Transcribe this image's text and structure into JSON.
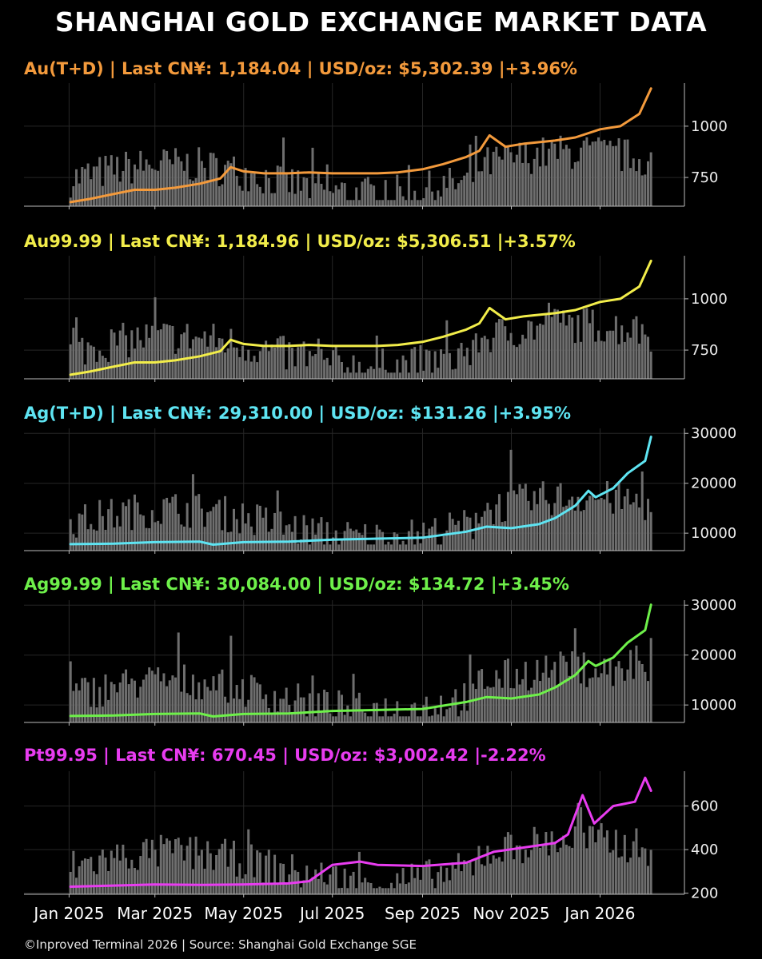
{
  "title": "SHANGHAI GOLD EXCHANGE MARKET DATA",
  "footer": "©Inproved Terminal 2026 | Source: Shanghai Gold Exchange SGE",
  "x_axis": {
    "tick_labels": [
      "Jan 2025",
      "Mar 2025",
      "May 2025",
      "Jul 2025",
      "Sep 2025",
      "Nov 2025",
      "Jan 2026"
    ],
    "tick_dates": [
      "2025-01-01",
      "2025-03-01",
      "2025-05-01",
      "2025-07-01",
      "2025-09-01",
      "2025-11-01",
      "2026-01-01"
    ],
    "range": [
      "2024-12-01",
      "2026-02-28"
    ]
  },
  "chart_data": [
    {
      "type": "line",
      "name": "Au(T+D)",
      "title": "Au(T+D)  |  Last CN¥: 1,184.04  |  USD/oz: $5,302.39 |+3.96%",
      "color": "#f39a3c",
      "ylim": [
        610,
        1210
      ],
      "yticks": [
        750,
        1000
      ],
      "ytick_labels": [
        "750",
        "1000"
      ],
      "grid": true,
      "volume_bars": true,
      "x": [
        "2025-01-02",
        "2025-01-15",
        "2025-02-01",
        "2025-02-15",
        "2025-03-01",
        "2025-03-15",
        "2025-04-01",
        "2025-04-15",
        "2025-04-22",
        "2025-05-01",
        "2025-05-15",
        "2025-06-01",
        "2025-06-15",
        "2025-07-01",
        "2025-07-15",
        "2025-08-01",
        "2025-08-15",
        "2025-09-01",
        "2025-09-15",
        "2025-10-01",
        "2025-10-10",
        "2025-10-17",
        "2025-10-28",
        "2025-11-10",
        "2025-12-01",
        "2025-12-15",
        "2026-01-01",
        "2026-01-15",
        "2026-01-28",
        "2026-02-05"
      ],
      "y": [
        630,
        645,
        670,
        690,
        690,
        700,
        720,
        745,
        800,
        780,
        770,
        770,
        775,
        770,
        770,
        770,
        775,
        790,
        815,
        850,
        880,
        955,
        900,
        915,
        930,
        945,
        985,
        1000,
        1060,
        1184
      ]
    },
    {
      "type": "line",
      "name": "Au99.99",
      "title": "Au99.99  |  Last CN¥: 1,184.96  |  USD/oz: $5,306.51 |+3.57%",
      "color": "#f2ed4a",
      "ylim": [
        610,
        1210
      ],
      "yticks": [
        750,
        1000
      ],
      "ytick_labels": [
        "750",
        "1000"
      ],
      "grid": true,
      "volume_bars": true,
      "x": [
        "2025-01-02",
        "2025-01-15",
        "2025-02-01",
        "2025-02-15",
        "2025-03-01",
        "2025-03-15",
        "2025-04-01",
        "2025-04-15",
        "2025-04-22",
        "2025-05-01",
        "2025-05-15",
        "2025-06-01",
        "2025-06-15",
        "2025-07-01",
        "2025-07-15",
        "2025-08-01",
        "2025-08-15",
        "2025-09-01",
        "2025-09-15",
        "2025-10-01",
        "2025-10-10",
        "2025-10-17",
        "2025-10-28",
        "2025-11-10",
        "2025-12-01",
        "2025-12-15",
        "2026-01-01",
        "2026-01-15",
        "2026-01-28",
        "2026-02-05"
      ],
      "y": [
        630,
        645,
        670,
        690,
        690,
        700,
        720,
        745,
        800,
        780,
        770,
        770,
        775,
        770,
        770,
        770,
        775,
        790,
        815,
        850,
        880,
        955,
        900,
        915,
        930,
        945,
        985,
        1000,
        1060,
        1185
      ]
    },
    {
      "type": "line",
      "name": "Ag(T+D)",
      "title": "Ag(T+D)  |  Last CN¥: 29,310.00  |  USD/oz: $131.26 |+3.95%",
      "color": "#5ee4f2",
      "ylim": [
        6500,
        31000
      ],
      "yticks": [
        10000,
        20000,
        30000
      ],
      "ytick_labels": [
        "10000",
        "20000",
        "30000"
      ],
      "grid": true,
      "volume_bars": true,
      "x": [
        "2025-01-02",
        "2025-02-01",
        "2025-03-01",
        "2025-04-01",
        "2025-04-10",
        "2025-05-01",
        "2025-06-01",
        "2025-07-01",
        "2025-08-01",
        "2025-09-01",
        "2025-10-01",
        "2025-10-15",
        "2025-11-01",
        "2025-11-20",
        "2025-12-01",
        "2025-12-15",
        "2025-12-24",
        "2025-12-29",
        "2026-01-10",
        "2026-01-20",
        "2026-02-01",
        "2026-02-05"
      ],
      "y": [
        7800,
        7900,
        8200,
        8300,
        7700,
        8200,
        8300,
        8700,
        8900,
        9100,
        10300,
        11300,
        11000,
        11800,
        13000,
        15500,
        18500,
        17200,
        19000,
        22000,
        24500,
        29310
      ]
    },
    {
      "type": "line",
      "name": "Ag99.99",
      "title": "Ag99.99  |  Last CN¥: 30,084.00  |  USD/oz: $134.72 |+3.45%",
      "color": "#6ef04a",
      "ylim": [
        6500,
        31000
      ],
      "yticks": [
        10000,
        20000,
        30000
      ],
      "ytick_labels": [
        "10000",
        "20000",
        "30000"
      ],
      "grid": true,
      "volume_bars": true,
      "x": [
        "2025-01-02",
        "2025-02-01",
        "2025-03-01",
        "2025-04-01",
        "2025-04-10",
        "2025-05-01",
        "2025-06-01",
        "2025-07-01",
        "2025-08-01",
        "2025-09-01",
        "2025-10-01",
        "2025-10-15",
        "2025-11-01",
        "2025-11-20",
        "2025-12-01",
        "2025-12-15",
        "2025-12-24",
        "2025-12-29",
        "2026-01-10",
        "2026-01-20",
        "2026-02-01",
        "2026-02-05"
      ],
      "y": [
        7800,
        7900,
        8200,
        8300,
        7700,
        8200,
        8300,
        8800,
        9000,
        9200,
        10600,
        11600,
        11300,
        12100,
        13500,
        16000,
        18800,
        17800,
        19500,
        22500,
        25000,
        30084
      ]
    },
    {
      "type": "line",
      "name": "Pt99.95",
      "title": "Pt99.95  |  Last CN¥: 670.45  |  USD/oz: $3,002.42 |-2.22%",
      "color": "#e83cf0",
      "ylim": [
        195,
        760
      ],
      "yticks": [
        200,
        400,
        600
      ],
      "ytick_labels": [
        "200",
        "400",
        "600"
      ],
      "grid": true,
      "volume_bars": true,
      "x": [
        "2025-01-02",
        "2025-02-01",
        "2025-03-01",
        "2025-04-01",
        "2025-05-01",
        "2025-06-01",
        "2025-06-15",
        "2025-07-01",
        "2025-07-20",
        "2025-08-01",
        "2025-09-01",
        "2025-10-01",
        "2025-10-20",
        "2025-11-10",
        "2025-12-01",
        "2025-12-10",
        "2025-12-20",
        "2025-12-28",
        "2026-01-10",
        "2026-01-25",
        "2026-02-01",
        "2026-02-05"
      ],
      "y": [
        230,
        235,
        240,
        238,
        240,
        245,
        255,
        330,
        345,
        330,
        325,
        340,
        390,
        410,
        430,
        470,
        650,
        520,
        600,
        620,
        730,
        670
      ]
    }
  ]
}
